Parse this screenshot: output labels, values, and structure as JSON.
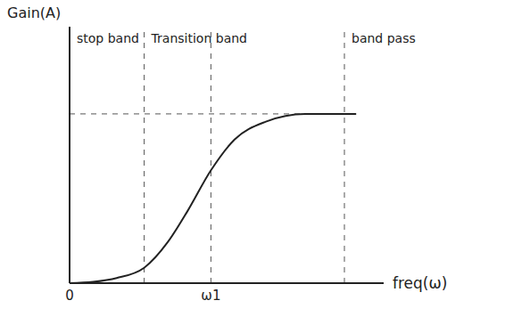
{
  "chart_data": {
    "type": "line",
    "x": [
      0,
      0.6,
      1.2,
      1.9,
      2.5,
      3.0,
      3.6,
      4.2,
      5.0,
      6.0,
      7.0,
      7.3
    ],
    "values": [
      0,
      0.05,
      0.2,
      0.6,
      1.6,
      2.8,
      4.4,
      5.6,
      6.3,
      6.6,
      6.6,
      6.6
    ],
    "color": "#222222",
    "xlim": [
      0,
      8
    ],
    "ylim": [
      0,
      10
    ],
    "xticks": [
      0,
      {
        "value": 3.6,
        "label": "ω1"
      }
    ],
    "tick_labels": "x",
    "x_label": "freq(ω)",
    "y_label": "Gain(A)",
    "bands": [
      {
        "label": "stop band",
        "from": 0,
        "to": 1.9
      },
      {
        "label": "Transition band",
        "from": 1.9,
        "to": 7.0
      },
      {
        "label": "band pass",
        "from": 7.0,
        "to": 8
      }
    ]
  }
}
